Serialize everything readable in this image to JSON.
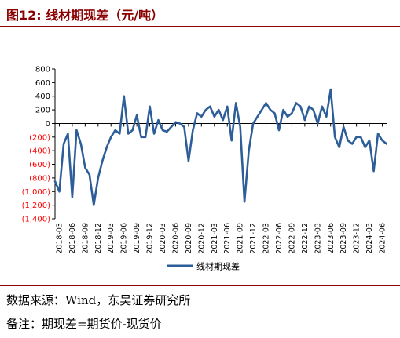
{
  "header": {
    "title": "图12:  线材期现差（元/吨）"
  },
  "footer": {
    "source": "数据来源：Wind，东吴证券研究所",
    "remark": "备注：期现差=期货价-现货价"
  },
  "colors": {
    "title": "#8B0000",
    "series": "#2E5E9A",
    "negative_tick": "#FF0000",
    "positive_tick": "#000000"
  },
  "chart_data": {
    "type": "line",
    "title": "",
    "xlabel": "",
    "ylabel": "",
    "ylim": [
      -1400,
      800
    ],
    "yticks": [
      800,
      600,
      400,
      200,
      0,
      -200,
      -400,
      -600,
      -800,
      -1000,
      -1200,
      -1400
    ],
    "ytick_labels": [
      "800",
      "600",
      "400",
      "200",
      "0",
      "(200)",
      "(400)",
      "(600)",
      "(800)",
      "(1,000)",
      "(1,200)",
      "(1,400)"
    ],
    "xlim": [
      "2018-02",
      "2024-07"
    ],
    "xtick_labels": [
      "2018-03",
      "2018-06",
      "2018-09",
      "2018-12",
      "2019-03",
      "2019-06",
      "2019-09",
      "2019-12",
      "2020-03",
      "2020-06",
      "2020-09",
      "2020-12",
      "2021-03",
      "2021-06",
      "2021-09",
      "2021-12",
      "2022-03",
      "2022-06",
      "2022-09",
      "2022-12",
      "2023-03",
      "2023-06",
      "2023-09",
      "2023-12",
      "2024-03",
      "2024-06"
    ],
    "grid": false,
    "legend": "bottom",
    "series": [
      {
        "name": "线材期现差",
        "x": [
          "2018-02",
          "2018-03",
          "2018-04",
          "2018-05",
          "2018-06",
          "2018-07",
          "2018-08",
          "2018-09",
          "2018-10",
          "2018-11",
          "2018-12",
          "2019-01",
          "2019-02",
          "2019-03",
          "2019-04",
          "2019-05",
          "2019-06",
          "2019-07",
          "2019-08",
          "2019-09",
          "2019-10",
          "2019-11",
          "2019-12",
          "2020-01",
          "2020-02",
          "2020-03",
          "2020-04",
          "2020-05",
          "2020-06",
          "2020-07",
          "2020-08",
          "2020-09",
          "2020-10",
          "2020-11",
          "2020-12",
          "2021-01",
          "2021-02",
          "2021-03",
          "2021-04",
          "2021-05",
          "2021-06",
          "2021-07",
          "2021-08",
          "2021-09",
          "2021-10",
          "2021-11",
          "2021-12",
          "2022-01",
          "2022-02",
          "2022-03",
          "2022-04",
          "2022-05",
          "2022-06",
          "2022-07",
          "2022-08",
          "2022-09",
          "2022-10",
          "2022-11",
          "2022-12",
          "2023-01",
          "2023-02",
          "2023-03",
          "2023-04",
          "2023-05",
          "2023-06",
          "2023-07",
          "2023-08",
          "2023-09",
          "2023-10",
          "2023-11",
          "2023-12",
          "2024-01",
          "2024-02",
          "2024-03",
          "2024-04",
          "2024-05",
          "2024-06",
          "2024-07"
        ],
        "values": [
          -850,
          -1000,
          -300,
          -150,
          -1080,
          -100,
          -300,
          -650,
          -750,
          -1200,
          -800,
          -550,
          -350,
          -200,
          -100,
          -150,
          400,
          -150,
          -100,
          120,
          -200,
          -200,
          250,
          -150,
          50,
          -100,
          -120,
          -50,
          20,
          0,
          -50,
          -550,
          -100,
          150,
          100,
          200,
          250,
          100,
          200,
          50,
          250,
          -250,
          300,
          -50,
          -1150,
          -400,
          0,
          100,
          200,
          300,
          200,
          150,
          -100,
          200,
          100,
          150,
          300,
          250,
          50,
          250,
          200,
          0,
          250,
          100,
          500,
          -200,
          -350,
          -50,
          -250,
          -300,
          -200,
          -200,
          -350,
          -250,
          -700,
          -150,
          -250,
          -300
        ]
      }
    ]
  }
}
